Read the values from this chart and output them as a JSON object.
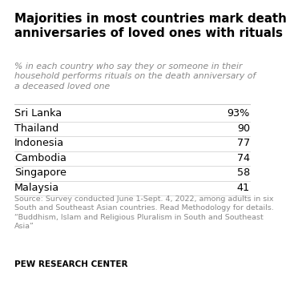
{
  "title": "Majorities in most countries mark death\nanniversaries of loved ones with rituals",
  "subtitle": "% in each country who say they or someone in their\nhousehold performs rituals on the death anniversary of\na deceased loved one",
  "countries": [
    "Sri Lanka",
    "Thailand",
    "Indonesia",
    "Cambodia",
    "Singapore",
    "Malaysia"
  ],
  "values": [
    "93%",
    "90",
    "77",
    "74",
    "58",
    "41"
  ],
  "source": "Source: Survey conducted June 1-Sept. 4, 2022, among adults in six\nSouth and Southeast Asian countries. Read Methodology for details.\n“Buddhism, Islam and Religious Pluralism in South and Southeast\nAsia”",
  "branding": "PEW RESEARCH CENTER",
  "bg_color": "#ffffff",
  "title_color": "#000000",
  "subtitle_color": "#888888",
  "country_color": "#000000",
  "value_color": "#000000",
  "source_color": "#888888",
  "branding_color": "#000000",
  "title_fontsize": 10.8,
  "subtitle_fontsize": 7.8,
  "country_fontsize": 9.2,
  "value_fontsize": 9.2,
  "source_fontsize": 6.8,
  "branding_fontsize": 7.5,
  "line_color": "#cccccc"
}
